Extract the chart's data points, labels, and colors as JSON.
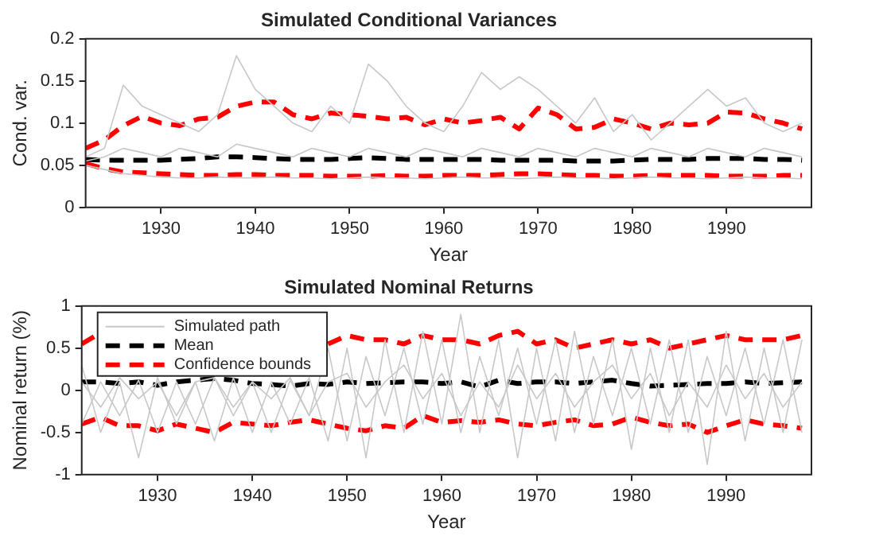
{
  "chart_data": [
    {
      "type": "line",
      "title": "Simulated Conditional Variances",
      "xlabel": "Year",
      "ylabel": "Cond. var.",
      "x": [
        1922,
        1924,
        1926,
        1928,
        1930,
        1932,
        1934,
        1936,
        1938,
        1940,
        1942,
        1944,
        1946,
        1948,
        1950,
        1952,
        1954,
        1956,
        1958,
        1960,
        1962,
        1964,
        1966,
        1968,
        1970,
        1972,
        1974,
        1976,
        1978,
        1980,
        1982,
        1984,
        1986,
        1988,
        1990,
        1992,
        1994,
        1996,
        1998
      ],
      "xlim": [
        1922,
        1999
      ],
      "xticks": [
        1930,
        1940,
        1950,
        1960,
        1970,
        1980,
        1990
      ],
      "ylim": [
        0,
        0.2
      ],
      "yticks": [
        0,
        0.05,
        0.1,
        0.15,
        0.2
      ],
      "grid": false,
      "legend": false,
      "marker": "none",
      "series": [
        {
          "color": "#c8c8c8",
          "line_style": "solid",
          "values": [
            0.06,
            0.07,
            0.145,
            0.12,
            0.11,
            0.1,
            0.09,
            0.11,
            0.18,
            0.14,
            0.12,
            0.1,
            0.09,
            0.12,
            0.1,
            0.17,
            0.15,
            0.12,
            0.1,
            0.09,
            0.12,
            0.16,
            0.14,
            0.155,
            0.14,
            0.12,
            0.1,
            0.13,
            0.09,
            0.11,
            0.08,
            0.1,
            0.12,
            0.14,
            0.12,
            0.13,
            0.1,
            0.09,
            0.1
          ]
        },
        {
          "color": "#c8c8c8",
          "line_style": "solid",
          "values": [
            0.055,
            0.06,
            0.07,
            0.065,
            0.06,
            0.07,
            0.065,
            0.06,
            0.075,
            0.07,
            0.065,
            0.06,
            0.07,
            0.065,
            0.06,
            0.07,
            0.065,
            0.06,
            0.07,
            0.065,
            0.06,
            0.07,
            0.065,
            0.06,
            0.07,
            0.065,
            0.06,
            0.07,
            0.065,
            0.06,
            0.07,
            0.065,
            0.06,
            0.07,
            0.065,
            0.06,
            0.07,
            0.065,
            0.06
          ]
        },
        {
          "color": "#c8c8c8",
          "line_style": "solid",
          "values": [
            0.05,
            0.045,
            0.04,
            0.038,
            0.036,
            0.035,
            0.035,
            0.036,
            0.035,
            0.035,
            0.036,
            0.035,
            0.035,
            0.034,
            0.035,
            0.036,
            0.035,
            0.035,
            0.034,
            0.035,
            0.036,
            0.035,
            0.035,
            0.034,
            0.035,
            0.036,
            0.035,
            0.035,
            0.034,
            0.035,
            0.036,
            0.035,
            0.035,
            0.034,
            0.035,
            0.036,
            0.035,
            0.035,
            0.034
          ]
        },
        {
          "color": "#000000",
          "line_style": "dashed",
          "values": [
            0.057,
            0.056,
            0.056,
            0.056,
            0.056,
            0.057,
            0.058,
            0.06,
            0.06,
            0.059,
            0.058,
            0.057,
            0.057,
            0.057,
            0.058,
            0.059,
            0.058,
            0.057,
            0.057,
            0.057,
            0.057,
            0.057,
            0.056,
            0.056,
            0.056,
            0.056,
            0.055,
            0.055,
            0.055,
            0.056,
            0.057,
            0.057,
            0.057,
            0.058,
            0.058,
            0.058,
            0.057,
            0.057,
            0.056
          ]
        },
        {
          "color": "#ff0000",
          "line_style": "dashed",
          "values": [
            0.07,
            0.08,
            0.097,
            0.108,
            0.1,
            0.097,
            0.105,
            0.107,
            0.12,
            0.125,
            0.125,
            0.11,
            0.105,
            0.112,
            0.11,
            0.108,
            0.105,
            0.107,
            0.098,
            0.105,
            0.1,
            0.103,
            0.107,
            0.093,
            0.118,
            0.11,
            0.093,
            0.095,
            0.105,
            0.1,
            0.093,
            0.1,
            0.098,
            0.1,
            0.113,
            0.112,
            0.105,
            0.1,
            0.093
          ]
        },
        {
          "color": "#ff0000",
          "line_style": "dashed",
          "values": [
            0.052,
            0.046,
            0.042,
            0.041,
            0.04,
            0.039,
            0.038,
            0.038,
            0.039,
            0.039,
            0.038,
            0.038,
            0.038,
            0.037,
            0.037,
            0.037,
            0.038,
            0.037,
            0.037,
            0.038,
            0.038,
            0.038,
            0.039,
            0.04,
            0.04,
            0.039,
            0.038,
            0.038,
            0.037,
            0.037,
            0.038,
            0.038,
            0.038,
            0.038,
            0.037,
            0.037,
            0.037,
            0.038,
            0.038
          ]
        }
      ]
    },
    {
      "type": "line",
      "title": "Simulated Nominal Returns",
      "xlabel": "Year",
      "ylabel": "Nominal return (%)",
      "x": [
        1922,
        1924,
        1926,
        1928,
        1930,
        1932,
        1934,
        1936,
        1938,
        1940,
        1942,
        1944,
        1946,
        1948,
        1950,
        1952,
        1954,
        1956,
        1958,
        1960,
        1962,
        1964,
        1966,
        1968,
        1970,
        1972,
        1974,
        1976,
        1978,
        1980,
        1982,
        1984,
        1986,
        1988,
        1990,
        1992,
        1994,
        1996,
        1998
      ],
      "xlim": [
        1922,
        1999
      ],
      "xticks": [
        1930,
        1940,
        1950,
        1960,
        1970,
        1980,
        1990
      ],
      "ylim": [
        -1,
        1
      ],
      "yticks": [
        -1,
        -0.5,
        0,
        0.5,
        1
      ],
      "grid": false,
      "legend": "top left",
      "marker": "none",
      "series": [
        {
          "name": "Simulated path",
          "color": "#c8c8c8",
          "line_style": "solid",
          "values": [
            0.3,
            -0.5,
            0.1,
            -0.8,
            0.15,
            -0.4,
            0.1,
            -0.6,
            0.15,
            -0.5,
            0.1,
            -0.4,
            0.15,
            -0.6,
            0.5,
            -0.8,
            0.6,
            -0.5,
            0.7,
            -0.4,
            0.9,
            -0.5,
            0.6,
            -0.8,
            0.5,
            -0.6,
            0.7,
            -0.4,
            0.6,
            -0.7,
            0.5,
            -0.5,
            0.6,
            -0.88,
            0.7,
            -0.6,
            0.5,
            -0.5,
            0.6
          ]
        },
        {
          "color": "#c8c8c8",
          "line_style": "solid",
          "values": [
            -0.4,
            0.1,
            -0.3,
            0.12,
            -0.5,
            0.1,
            -0.4,
            0.15,
            -0.3,
            0.1,
            -0.5,
            0.12,
            -0.3,
            0.5,
            -0.6,
            0.4,
            -0.3,
            0.5,
            -0.4,
            0.6,
            -0.5,
            0.4,
            -0.3,
            0.5,
            -0.4,
            0.6,
            -0.5,
            0.4,
            -0.3,
            0.5,
            -0.4,
            0.6,
            -0.5,
            0.4,
            -0.3,
            0.5,
            -0.4,
            0.6,
            -0.5
          ]
        },
        {
          "color": "#c8c8c8",
          "line_style": "solid",
          "values": [
            0.1,
            -0.2,
            0.15,
            -0.1,
            0.1,
            -0.3,
            0.1,
            0.15,
            -0.2,
            0.1,
            -0.1,
            0.15,
            -0.3,
            0.1,
            0.2,
            -0.2,
            0.1,
            0.3,
            -0.1,
            0.2,
            -0.3,
            0.1,
            -0.2,
            0.3,
            -0.1,
            0.2,
            -0.2,
            0.1,
            0.3,
            -0.1,
            0.2,
            -0.3,
            0.1,
            -0.2,
            0.3,
            -0.1,
            0.2,
            -0.2,
            0.1
          ]
        },
        {
          "name": "Mean",
          "color": "#000000",
          "line_style": "dashed",
          "values": [
            0.1,
            0.1,
            0.08,
            0.1,
            0.06,
            0.1,
            0.12,
            0.14,
            0.12,
            0.08,
            0.07,
            0.05,
            0.08,
            0.07,
            0.1,
            0.08,
            0.09,
            0.1,
            0.1,
            0.08,
            0.1,
            0.04,
            0.12,
            0.08,
            0.1,
            0.1,
            0.08,
            0.1,
            0.12,
            0.08,
            0.05,
            0.06,
            0.07,
            0.08,
            0.08,
            0.1,
            0.08,
            0.09,
            0.1
          ]
        },
        {
          "name": "Confidence bounds",
          "color": "#ff0000",
          "line_style": "dashed",
          "x": [
            1922,
            1923.5,
            1935,
            1948,
            1950,
            1952,
            1954,
            1956,
            1958,
            1960,
            1962,
            1964,
            1966,
            1968,
            1970,
            1972,
            1974,
            1976,
            1978,
            1980,
            1982,
            1984,
            1986,
            1988,
            1990,
            1992,
            1994,
            1996,
            1998
          ],
          "values": [
            0.55,
            0.65,
            null,
            0.55,
            0.65,
            0.6,
            0.6,
            0.55,
            0.65,
            0.6,
            0.6,
            0.55,
            0.65,
            0.7,
            0.55,
            0.6,
            0.5,
            0.55,
            0.6,
            0.55,
            0.6,
            0.5,
            0.55,
            0.6,
            0.65,
            0.6,
            0.6,
            0.6,
            0.65
          ]
        },
        {
          "color": "#ff0000",
          "line_style": "dashed",
          "values": [
            -0.4,
            -0.32,
            -0.42,
            -0.42,
            -0.48,
            -0.4,
            -0.45,
            -0.5,
            -0.38,
            -0.4,
            -0.42,
            -0.38,
            -0.35,
            -0.4,
            -0.45,
            -0.48,
            -0.42,
            -0.45,
            -0.3,
            -0.38,
            -0.36,
            -0.38,
            -0.35,
            -0.4,
            -0.42,
            -0.38,
            -0.35,
            -0.42,
            -0.4,
            -0.32,
            -0.38,
            -0.42,
            -0.4,
            -0.5,
            -0.42,
            -0.35,
            -0.4,
            -0.42,
            -0.45
          ]
        }
      ]
    }
  ]
}
